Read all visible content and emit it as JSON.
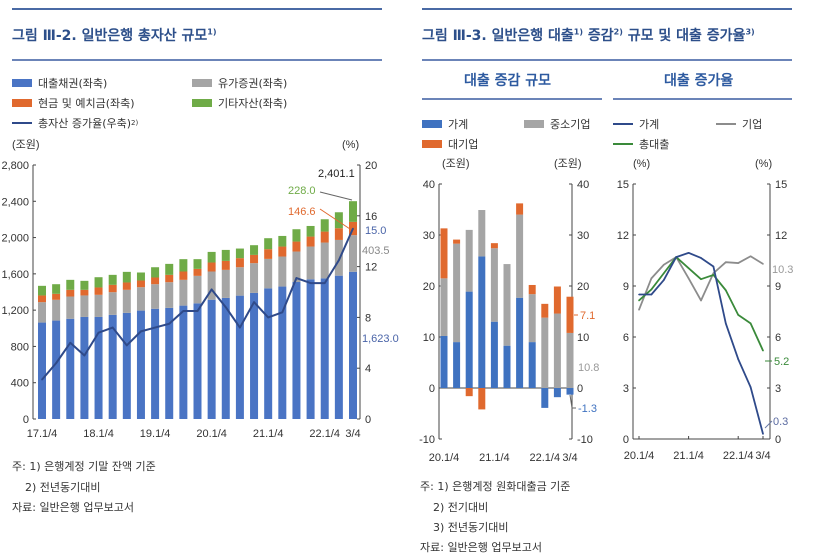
{
  "figure_left": {
    "title": "그림 Ⅲ-2. 일반은행 총자산 규모",
    "title_sup": "1)",
    "legend": [
      {
        "label": "대출채권(좌축)",
        "color": "#4a74c4",
        "kind": "bar"
      },
      {
        "label": "유가증권(좌축)",
        "color": "#a5a5a5",
        "kind": "bar"
      },
      {
        "label": "현금 및 예치금(좌축)",
        "color": "#e0692e",
        "kind": "bar"
      },
      {
        "label": "기타자산(좌축)",
        "color": "#6fab47",
        "kind": "bar"
      },
      {
        "label": "총자산 증가율(우축)",
        "sup": "2)",
        "color": "#2f4a8a",
        "kind": "line"
      }
    ],
    "notes": [
      "주: 1) 은행계정 기말 잔액 기준",
      "2) 전년동기대비",
      "자료: 일반은행 업무보고서"
    ]
  },
  "figure_right": {
    "title_parts": [
      "그림 Ⅲ-3. 일반은행 대출",
      "1)",
      " 증감",
      "2)",
      " 규모 및 대출 증가율",
      "3)"
    ],
    "subtitle_left": "대출 증감 규모",
    "subtitle_right": "대출 증가율",
    "legend_left": [
      {
        "label": "가계",
        "color": "#3f72c0"
      },
      {
        "label": "중소기업",
        "color": "#a5a5a5"
      },
      {
        "label": "대기업",
        "color": "#e0692e"
      }
    ],
    "legend_right": [
      {
        "label": "가계",
        "color": "#2f4a8a"
      },
      {
        "label": "기업",
        "color": "#8c8c8c"
      },
      {
        "label": "총대출",
        "color": "#3a8a3a"
      }
    ],
    "notes": [
      "주: 1) 은행계정 원화대출금 기준",
      "2) 전기대비",
      "3) 전년동기대비",
      "자료: 일반은행 업무보고서"
    ]
  },
  "chart_data": [
    {
      "type": "bar",
      "stacked": true,
      "categories": [
        "17.1/4",
        "17.2/4",
        "17.3/4",
        "17.4/4",
        "18.1/4",
        "18.2/4",
        "18.3/4",
        "18.4/4",
        "19.1/4",
        "19.2/4",
        "19.3/4",
        "19.4/4",
        "20.1/4",
        "20.2/4",
        "20.3/4",
        "20.4/4",
        "21.1/4",
        "21.2/4",
        "21.3/4",
        "21.4/4",
        "22.1/4",
        "22.2/4",
        "3/4"
      ],
      "x_tick_labels": [
        "17.1/4",
        "18.1/4",
        "19.1/4",
        "20.1/4",
        "21.1/4",
        "22.1/4",
        "3/4"
      ],
      "series": [
        {
          "name": "대출채권(좌축)",
          "axis": "left",
          "values": [
            1063,
            1085,
            1105,
            1125,
            1125,
            1148,
            1170,
            1195,
            1215,
            1225,
            1250,
            1275,
            1315,
            1335,
            1360,
            1390,
            1440,
            1460,
            1510,
            1540,
            1550,
            1580,
            1623.0
          ]
        },
        {
          "name": "유가증권(좌축)",
          "axis": "left",
          "values": [
            225,
            229,
            245,
            237,
            244,
            250,
            254,
            258,
            271,
            283,
            284,
            303,
            311,
            309,
            313,
            328,
            325,
            331,
            336,
            361,
            395,
            394,
            403.5
          ]
        },
        {
          "name": "현금 및 예치금(좌축)",
          "axis": "left",
          "values": [
            74,
            66,
            74,
            62,
            81,
            81,
            81,
            74,
            74,
            81,
            92,
            77,
            99,
            99,
            100,
            91,
            107,
            110,
            110,
            110,
            121,
            129,
            146.6
          ]
        },
        {
          "name": "기타자산(좌축)",
          "axis": "left",
          "values": [
            106,
            106,
            110,
            99,
            113,
            110,
            117,
            88,
            113,
            121,
            136,
            107,
            117,
            121,
            106,
            107,
            121,
            117,
            136,
            117,
            136,
            176,
            228.0
          ]
        },
        {
          "name": "총자산 증가율(우축)",
          "axis": "right",
          "type": "line",
          "values": [
            3.1,
            4.4,
            6.0,
            5.0,
            6.8,
            7.2,
            5.8,
            6.9,
            7.2,
            7.5,
            8.5,
            8.5,
            10.2,
            8.8,
            7.2,
            9.2,
            8.0,
            8.4,
            11.1,
            10.7,
            10.7,
            12.5,
            15.0
          ]
        }
      ],
      "left_axis": {
        "unit": "(조원)",
        "ylim": [
          0,
          2800
        ],
        "ticks": [
          "0",
          "400",
          "800",
          "1,200",
          "1,600",
          "2,000",
          "2,400",
          "2,800"
        ]
      },
      "right_axis": {
        "unit": "(%)",
        "ylim": [
          0,
          20
        ],
        "ticks": [
          "0",
          "4",
          "8",
          "12",
          "16",
          "20"
        ]
      },
      "annotations": {
        "total": "2,401.1",
        "other": "228.0",
        "cash": "146.6",
        "growth": "15.0",
        "securities": "403.5",
        "loans": "1,623.0"
      }
    },
    {
      "type": "bar",
      "stacked": true,
      "categories": [
        "20.1/4",
        "20.2/4",
        "20.3/4",
        "20.4/4",
        "21.1/4",
        "21.2/4",
        "21.3/4",
        "21.4/4",
        "22.1/4",
        "22.2/4",
        "3/4"
      ],
      "x_tick_labels": [
        "20.1/4",
        "21.1/4",
        "22.1/4",
        "3/4"
      ],
      "series": [
        {
          "name": "가계",
          "values": [
            10.2,
            9.0,
            18.9,
            25.8,
            13.0,
            8.3,
            17.7,
            9.0,
            -3.9,
            -1.8,
            -1.3
          ]
        },
        {
          "name": "중소기업",
          "values": [
            11.3,
            19.3,
            12.1,
            9.1,
            14.4,
            16.0,
            16.3,
            9.4,
            13.8,
            14.6,
            10.8
          ]
        },
        {
          "name": "대기업",
          "values": [
            9.8,
            0.8,
            -1.6,
            -4.2,
            1.0,
            0.0,
            2.2,
            1.8,
            2.7,
            5.3,
            7.1
          ]
        }
      ],
      "left_axis": {
        "unit": "(조원)",
        "ylim": [
          -10,
          40
        ],
        "ticks": [
          "-10",
          "0",
          "10",
          "20",
          "30",
          "40"
        ]
      },
      "right_axis": {
        "unit": "(조원)",
        "ylim": [
          -10,
          40
        ],
        "ticks": [
          "-10",
          "0",
          "10",
          "20",
          "30",
          "40"
        ]
      },
      "annotations": {
        "large": "7.1",
        "sme": "10.8",
        "household": "-1.3"
      }
    },
    {
      "type": "line",
      "categories": [
        "20.1/4",
        "20.2/4",
        "20.3/4",
        "20.4/4",
        "21.1/4",
        "21.2/4",
        "21.3/4",
        "21.4/4",
        "22.1/4",
        "22.2/4",
        "3/4"
      ],
      "x_tick_labels": [
        "20.1/4",
        "21.1/4",
        "22.1/4",
        "3/4"
      ],
      "series": [
        {
          "name": "가계",
          "values": [
            8.5,
            8.5,
            9.35,
            10.7,
            10.95,
            10.65,
            10.15,
            6.8,
            4.7,
            3.05,
            0.3
          ]
        },
        {
          "name": "기업",
          "values": [
            7.6,
            9.45,
            10.25,
            10.7,
            9.45,
            8.15,
            9.75,
            10.4,
            10.35,
            10.75,
            10.3
          ]
        },
        {
          "name": "총대출",
          "values": [
            8.15,
            8.8,
            9.75,
            10.7,
            10.05,
            9.4,
            9.65,
            8.75,
            7.3,
            6.8,
            5.2
          ]
        }
      ],
      "left_axis": {
        "unit": "(%)",
        "ylim": [
          0,
          15
        ],
        "ticks": [
          "0",
          "3",
          "6",
          "9",
          "12",
          "15"
        ]
      },
      "right_axis": {
        "unit": "(%)",
        "ylim": [
          0,
          15
        ],
        "ticks": [
          "0",
          "3",
          "6",
          "9",
          "12",
          "15"
        ]
      },
      "annotations": {
        "corporate": "10.3",
        "total": "5.2",
        "household": "0.3"
      }
    }
  ]
}
